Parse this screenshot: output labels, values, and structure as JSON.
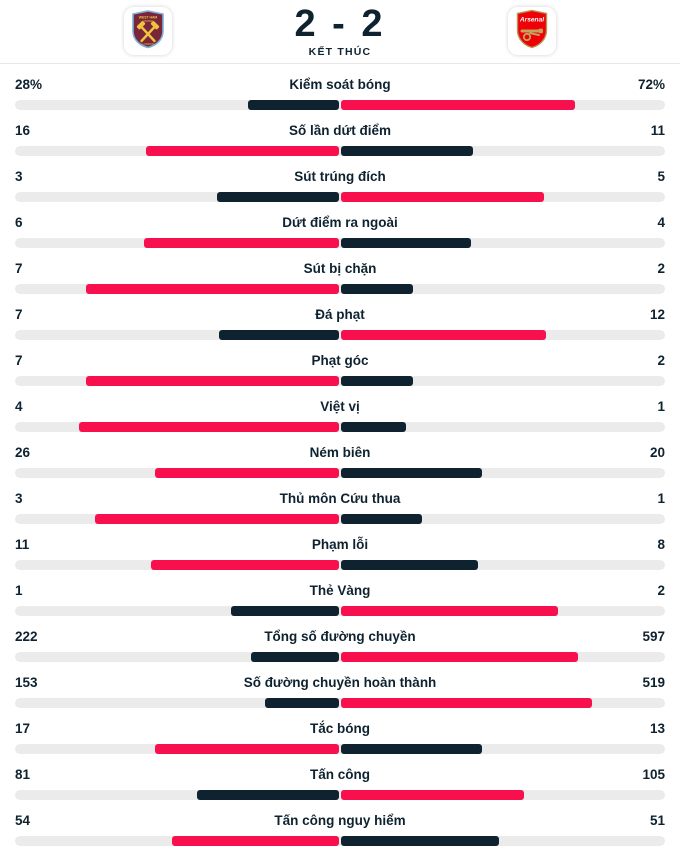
{
  "header": {
    "score": "2 - 2",
    "status": "KẾT THÚC",
    "home_team": "West Ham United",
    "away_team": "Arsenal"
  },
  "colors": {
    "highlight_red": "#f7104d",
    "dark_navy": "#0e2230",
    "track_gray": "#ebebeb",
    "divider": "#e7e7e7",
    "westham_claret": "#7a263a",
    "westham_blue": "#7fb2d9",
    "westham_gold": "#f0c33f",
    "arsenal_red": "#ee0107",
    "arsenal_gold": "#c3a35c"
  },
  "stats": {
    "rows": [
      {
        "label": "Kiểm soát bóng",
        "home": "28%",
        "away": "72%"
      },
      {
        "label": "Số lần dứt điểm",
        "home": "16",
        "away": "11"
      },
      {
        "label": "Sút trúng đích",
        "home": "3",
        "away": "5"
      },
      {
        "label": "Dứt điểm ra ngoài",
        "home": "6",
        "away": "4"
      },
      {
        "label": "Sút bị chặn",
        "home": "7",
        "away": "2"
      },
      {
        "label": "Đá phạt",
        "home": "7",
        "away": "12"
      },
      {
        "label": "Phạt góc",
        "home": "7",
        "away": "2"
      },
      {
        "label": "Việt vị",
        "home": "4",
        "away": "1"
      },
      {
        "label": "Ném biên",
        "home": "26",
        "away": "20"
      },
      {
        "label": "Thủ môn Cứu thua",
        "home": "3",
        "away": "1"
      },
      {
        "label": "Phạm lỗi",
        "home": "11",
        "away": "8"
      },
      {
        "label": "Thẻ Vàng",
        "home": "1",
        "away": "2"
      },
      {
        "label": "Tổng số đường chuyền",
        "home": "222",
        "away": "597"
      },
      {
        "label": "Số đường chuyền hoàn thành",
        "home": "153",
        "away": "519"
      },
      {
        "label": "Tắc bóng",
        "home": "17",
        "away": "13"
      },
      {
        "label": "Tấn công",
        "home": "81",
        "away": "105"
      },
      {
        "label": "Tấn công nguy hiểm",
        "home": "54",
        "away": "51"
      }
    ]
  },
  "chart_data": {
    "type": "bar",
    "title": "2 - 2 KẾT THÚC",
    "categories": [
      "Kiểm soát bóng",
      "Số lần dứt điểm",
      "Sút trúng đích",
      "Dứt điểm ra ngoài",
      "Sút bị chặn",
      "Đá phạt",
      "Phạt góc",
      "Việt vị",
      "Ném biên",
      "Thủ môn Cứu thua",
      "Phạm lỗi",
      "Thẻ Vàng",
      "Tổng số đường chuyền",
      "Số đường chuyền hoàn thành",
      "Tắc bóng",
      "Tấn công",
      "Tấn công nguy hiểm"
    ],
    "series": [
      {
        "name": "West Ham United",
        "values": [
          28,
          16,
          3,
          6,
          7,
          7,
          7,
          4,
          26,
          3,
          11,
          1,
          222,
          153,
          17,
          81,
          54
        ]
      },
      {
        "name": "Arsenal",
        "values": [
          72,
          11,
          5,
          4,
          2,
          12,
          2,
          1,
          20,
          1,
          8,
          2,
          597,
          519,
          13,
          105,
          51
        ]
      }
    ],
    "units": "first category in percent, all others are counts",
    "layout": "horizontal diverging bars from center; each side width = value/(home+away) of half track; higher value colored #f7104d (red), lower #0e2230 (dark navy), track #ebebeb",
    "legend_position": "none",
    "grid": false
  }
}
